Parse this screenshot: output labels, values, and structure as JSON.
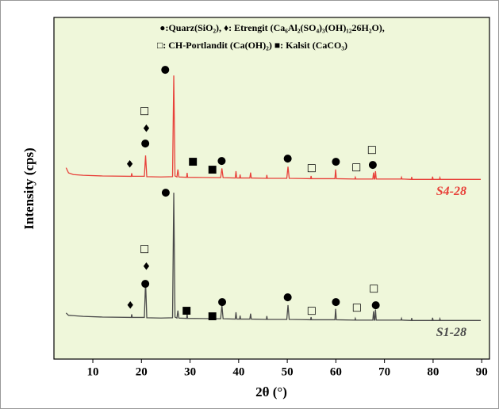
{
  "chart_data": {
    "type": "line",
    "title_lines": [
      "●:Quarz(SiO₂), ♦: Etrengit (Ca₆Al₂(SO₄)₃(OH)₁₂26H₂O),",
      "□: CH-Portlandit (Ca(OH)₂) ■: Kalsit (CaCO₃)"
    ],
    "xlabel": "2θ (°)",
    "ylabel": "Intensity (cps)",
    "xlim": [
      2,
      91.6
    ],
    "ylim": [
      0,
      100
    ],
    "xticks": [
      10,
      20,
      30,
      40,
      50,
      60,
      70,
      80,
      90
    ],
    "x": [
      4.5,
      5,
      6,
      8,
      12,
      17.9,
      18.0,
      18.1,
      20.6,
      20.85,
      21.1,
      24,
      26.4,
      26.65,
      26.9,
      27.3,
      27.5,
      27.7,
      29.3,
      29.4,
      29.5,
      36.3,
      36.55,
      36.8,
      39.3,
      39.45,
      39.6,
      40.2,
      40.3,
      40.4,
      42.3,
      42.45,
      42.6,
      45.7,
      45.8,
      45.9,
      49.9,
      50.15,
      50.4,
      54.8,
      54.9,
      55.0,
      59.8,
      59.95,
      60.1,
      63.9,
      64.0,
      64.1,
      67.6,
      67.75,
      67.9,
      68.0,
      68.15,
      68.3,
      73.4,
      73.5,
      73.6,
      75.5,
      75.6,
      75.7,
      79.8,
      79.9,
      80.0,
      81.3,
      81.4,
      81.5,
      89.8
    ],
    "series": [
      {
        "name": "S4-28",
        "color": "#e8413a",
        "values": [
          56,
          54.5,
          54,
          53.8,
          53.6,
          53.5,
          54.4,
          53.5,
          53.5,
          59.6,
          53.4,
          53.3,
          53.4,
          83,
          53.6,
          53.3,
          55.5,
          53.3,
          53.2,
          54.5,
          53.2,
          53.1,
          55.8,
          53.1,
          53,
          55,
          53,
          53,
          54,
          53,
          53,
          54.6,
          53,
          52.9,
          53.9,
          52.9,
          52.9,
          56.3,
          52.9,
          52.8,
          53.6,
          52.8,
          52.8,
          55.5,
          52.8,
          52.7,
          53.2,
          52.7,
          52.7,
          54.6,
          52.7,
          52.7,
          55,
          52.7,
          52.7,
          53.2,
          52.7,
          52.6,
          53.3,
          52.6,
          52.6,
          53.4,
          52.6,
          52.6,
          53.1,
          52.6,
          52.6
        ]
      },
      {
        "name": "S1-28",
        "color": "#4a4a4a",
        "values": [
          13.5,
          12.8,
          12.7,
          12.5,
          12.3,
          12.2,
          13.1,
          12.2,
          12.2,
          22.7,
          12.1,
          12,
          12.1,
          48.7,
          12.3,
          12,
          14.2,
          12,
          11.9,
          13.2,
          11.9,
          11.8,
          15.8,
          11.8,
          11.7,
          13.7,
          11.7,
          11.7,
          12.7,
          11.7,
          11.7,
          13.3,
          11.7,
          11.6,
          12.6,
          11.6,
          11.6,
          15.8,
          11.6,
          11.5,
          12.3,
          11.5,
          11.5,
          14.7,
          11.5,
          11.4,
          11.9,
          11.4,
          11.4,
          14,
          11.4,
          11.4,
          14.5,
          11.4,
          11.4,
          11.9,
          11.4,
          11.3,
          12,
          11.3,
          11.3,
          12.1,
          11.3,
          11.3,
          11.8,
          11.3,
          11.3
        ]
      }
    ],
    "markers": [
      {
        "symbol": "♦",
        "x": 17.6,
        "y": 56.8
      },
      {
        "symbol": "●",
        "x": 20.8,
        "y": 63.1
      },
      {
        "symbol": "♦",
        "x": 21,
        "y": 67.3
      },
      {
        "symbol": "□",
        "x": 20.6,
        "y": 72.6
      },
      {
        "symbol": "●",
        "x": 24.9,
        "y": 84.7
      },
      {
        "symbol": "■",
        "x": 30.6,
        "y": 57.8
      },
      {
        "symbol": "■",
        "x": 34.6,
        "y": 55.5
      },
      {
        "symbol": "●",
        "x": 36.5,
        "y": 58
      },
      {
        "symbol": "●",
        "x": 50.1,
        "y": 58.7
      },
      {
        "symbol": "□",
        "x": 55,
        "y": 55.9
      },
      {
        "symbol": "●",
        "x": 60,
        "y": 57.8
      },
      {
        "symbol": "□",
        "x": 64.2,
        "y": 56.1
      },
      {
        "symbol": "●",
        "x": 67.6,
        "y": 56.8
      },
      {
        "symbol": "□",
        "x": 67.4,
        "y": 61.3
      },
      {
        "symbol": "♦",
        "x": 17.7,
        "y": 15.5
      },
      {
        "symbol": "●",
        "x": 20.8,
        "y": 22
      },
      {
        "symbol": "♦",
        "x": 21,
        "y": 26.9
      },
      {
        "symbol": "□",
        "x": 20.6,
        "y": 32.3
      },
      {
        "symbol": "●",
        "x": 25,
        "y": 48.7
      },
      {
        "symbol": "■",
        "x": 29.3,
        "y": 14.2
      },
      {
        "symbol": "■",
        "x": 34.6,
        "y": 12.5
      },
      {
        "symbol": "●",
        "x": 36.6,
        "y": 16.7
      },
      {
        "symbol": "●",
        "x": 50.1,
        "y": 18.1
      },
      {
        "symbol": "□",
        "x": 55,
        "y": 14.2
      },
      {
        "symbol": "●",
        "x": 60,
        "y": 16.7
      },
      {
        "symbol": "□",
        "x": 64.3,
        "y": 15.1
      },
      {
        "symbol": "□",
        "x": 67.8,
        "y": 20.6
      },
      {
        "symbol": "●",
        "x": 68.2,
        "y": 15.8
      }
    ],
    "background": "#eff7da"
  }
}
